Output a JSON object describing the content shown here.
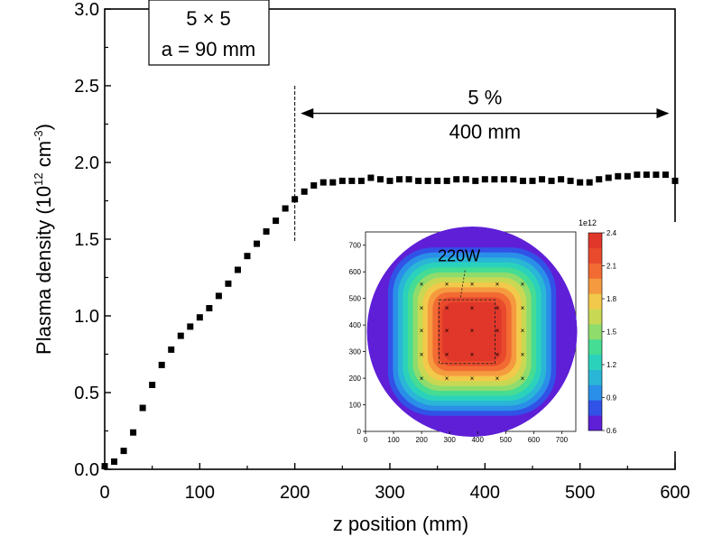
{
  "chart_data": [
    {
      "type": "scatter",
      "xlabel": "z position (mm)",
      "ylabel_main": "Plasma density (10",
      "ylabel_exp1": "12",
      "ylabel_mid": " cm",
      "ylabel_exp2": "-3",
      "ylabel_end": ")",
      "xlim": [
        0,
        600
      ],
      "ylim": [
        0,
        3.0
      ],
      "x_ticks": [
        0,
        100,
        200,
        300,
        400,
        500,
        600
      ],
      "x_tick_labels": [
        "0",
        "100",
        "200",
        "300",
        "400",
        "500",
        "600"
      ],
      "y_ticks": [
        0,
        0.5,
        1.0,
        1.5,
        2.0,
        2.5,
        3.0
      ],
      "y_tick_labels": [
        "0.0",
        "0.5",
        "1.0",
        "1.5",
        "2.0",
        "2.5",
        "3.0"
      ],
      "grid": false,
      "legend_box": {
        "line1": "5 × 5",
        "line2": "a = 90 mm"
      },
      "annotation": {
        "line1": "5 %",
        "line2": "400 mm",
        "arrow_from_x": 200,
        "arrow_to_x": 600,
        "arrow_y": 2.32,
        "divider_x": 200,
        "divider_y_range": [
          1.48,
          2.5
        ]
      },
      "series": [
        {
          "x": [
            0,
            10,
            20,
            30,
            40,
            50,
            60,
            70,
            80,
            90,
            100,
            110,
            120,
            130,
            140,
            150,
            160,
            170,
            180,
            190,
            200,
            210,
            220,
            230,
            240,
            250,
            260,
            270,
            280,
            290,
            300,
            310,
            320,
            330,
            340,
            350,
            360,
            370,
            380,
            390,
            400,
            410,
            420,
            430,
            440,
            450,
            460,
            470,
            480,
            490,
            500,
            510,
            520,
            530,
            540,
            550,
            560,
            570,
            580,
            590,
            600
          ],
          "y": [
            0.02,
            0.05,
            0.12,
            0.24,
            0.4,
            0.55,
            0.68,
            0.78,
            0.87,
            0.93,
            0.99,
            1.05,
            1.13,
            1.21,
            1.3,
            1.39,
            1.47,
            1.55,
            1.62,
            1.7,
            1.76,
            1.81,
            1.85,
            1.87,
            1.87,
            1.88,
            1.88,
            1.88,
            1.9,
            1.89,
            1.88,
            1.89,
            1.89,
            1.88,
            1.88,
            1.88,
            1.88,
            1.89,
            1.89,
            1.88,
            1.89,
            1.89,
            1.89,
            1.89,
            1.88,
            1.88,
            1.89,
            1.88,
            1.89,
            1.88,
            1.87,
            1.87,
            1.89,
            1.9,
            1.91,
            1.91,
            1.92,
            1.92,
            1.92,
            1.92,
            1.88
          ]
        }
      ]
    },
    {
      "type": "heatmap",
      "xlim": [
        0,
        750
      ],
      "ylim": [
        0,
        750
      ],
      "x_ticks": [
        0,
        100,
        200,
        300,
        400,
        500,
        600,
        700
      ],
      "x_tick_labels": [
        "0",
        "100",
        "200",
        "300",
        "400",
        "500",
        "600",
        "700"
      ],
      "y_ticks": [
        0,
        100,
        200,
        300,
        400,
        500,
        600,
        700
      ],
      "y_tick_labels": [
        "0",
        "100",
        "200",
        "300",
        "400",
        "500",
        "600",
        "700"
      ],
      "annotation": "220W",
      "colorbar_multiplier": "1e12",
      "colorbar_ticks": [
        0.6,
        0.9,
        1.2,
        1.5,
        1.8,
        2.1,
        2.4
      ],
      "colorbar_tick_labels": [
        "0.6",
        "0.9",
        "1.2",
        "1.5",
        "1.8",
        "2.1",
        "2.4"
      ],
      "colormap_levels": [
        "#5e1fd6",
        "#3152e6",
        "#2a8fe8",
        "#2ab6d6",
        "#2bd2bb",
        "#45dc93",
        "#8fdc6c",
        "#c9d853",
        "#f2c94a",
        "#f59a3f",
        "#f26b33",
        "#e94a2c",
        "#e1372a"
      ],
      "circle_center": [
        380,
        375
      ],
      "circle_radius": 375,
      "dashed_box": {
        "x": [
          262,
          462
        ],
        "y": [
          255,
          495
        ]
      },
      "markers": {
        "x": [
          200,
          290,
          380,
          470,
          560
        ],
        "y": [
          200,
          290,
          380,
          465,
          555
        ]
      }
    }
  ]
}
